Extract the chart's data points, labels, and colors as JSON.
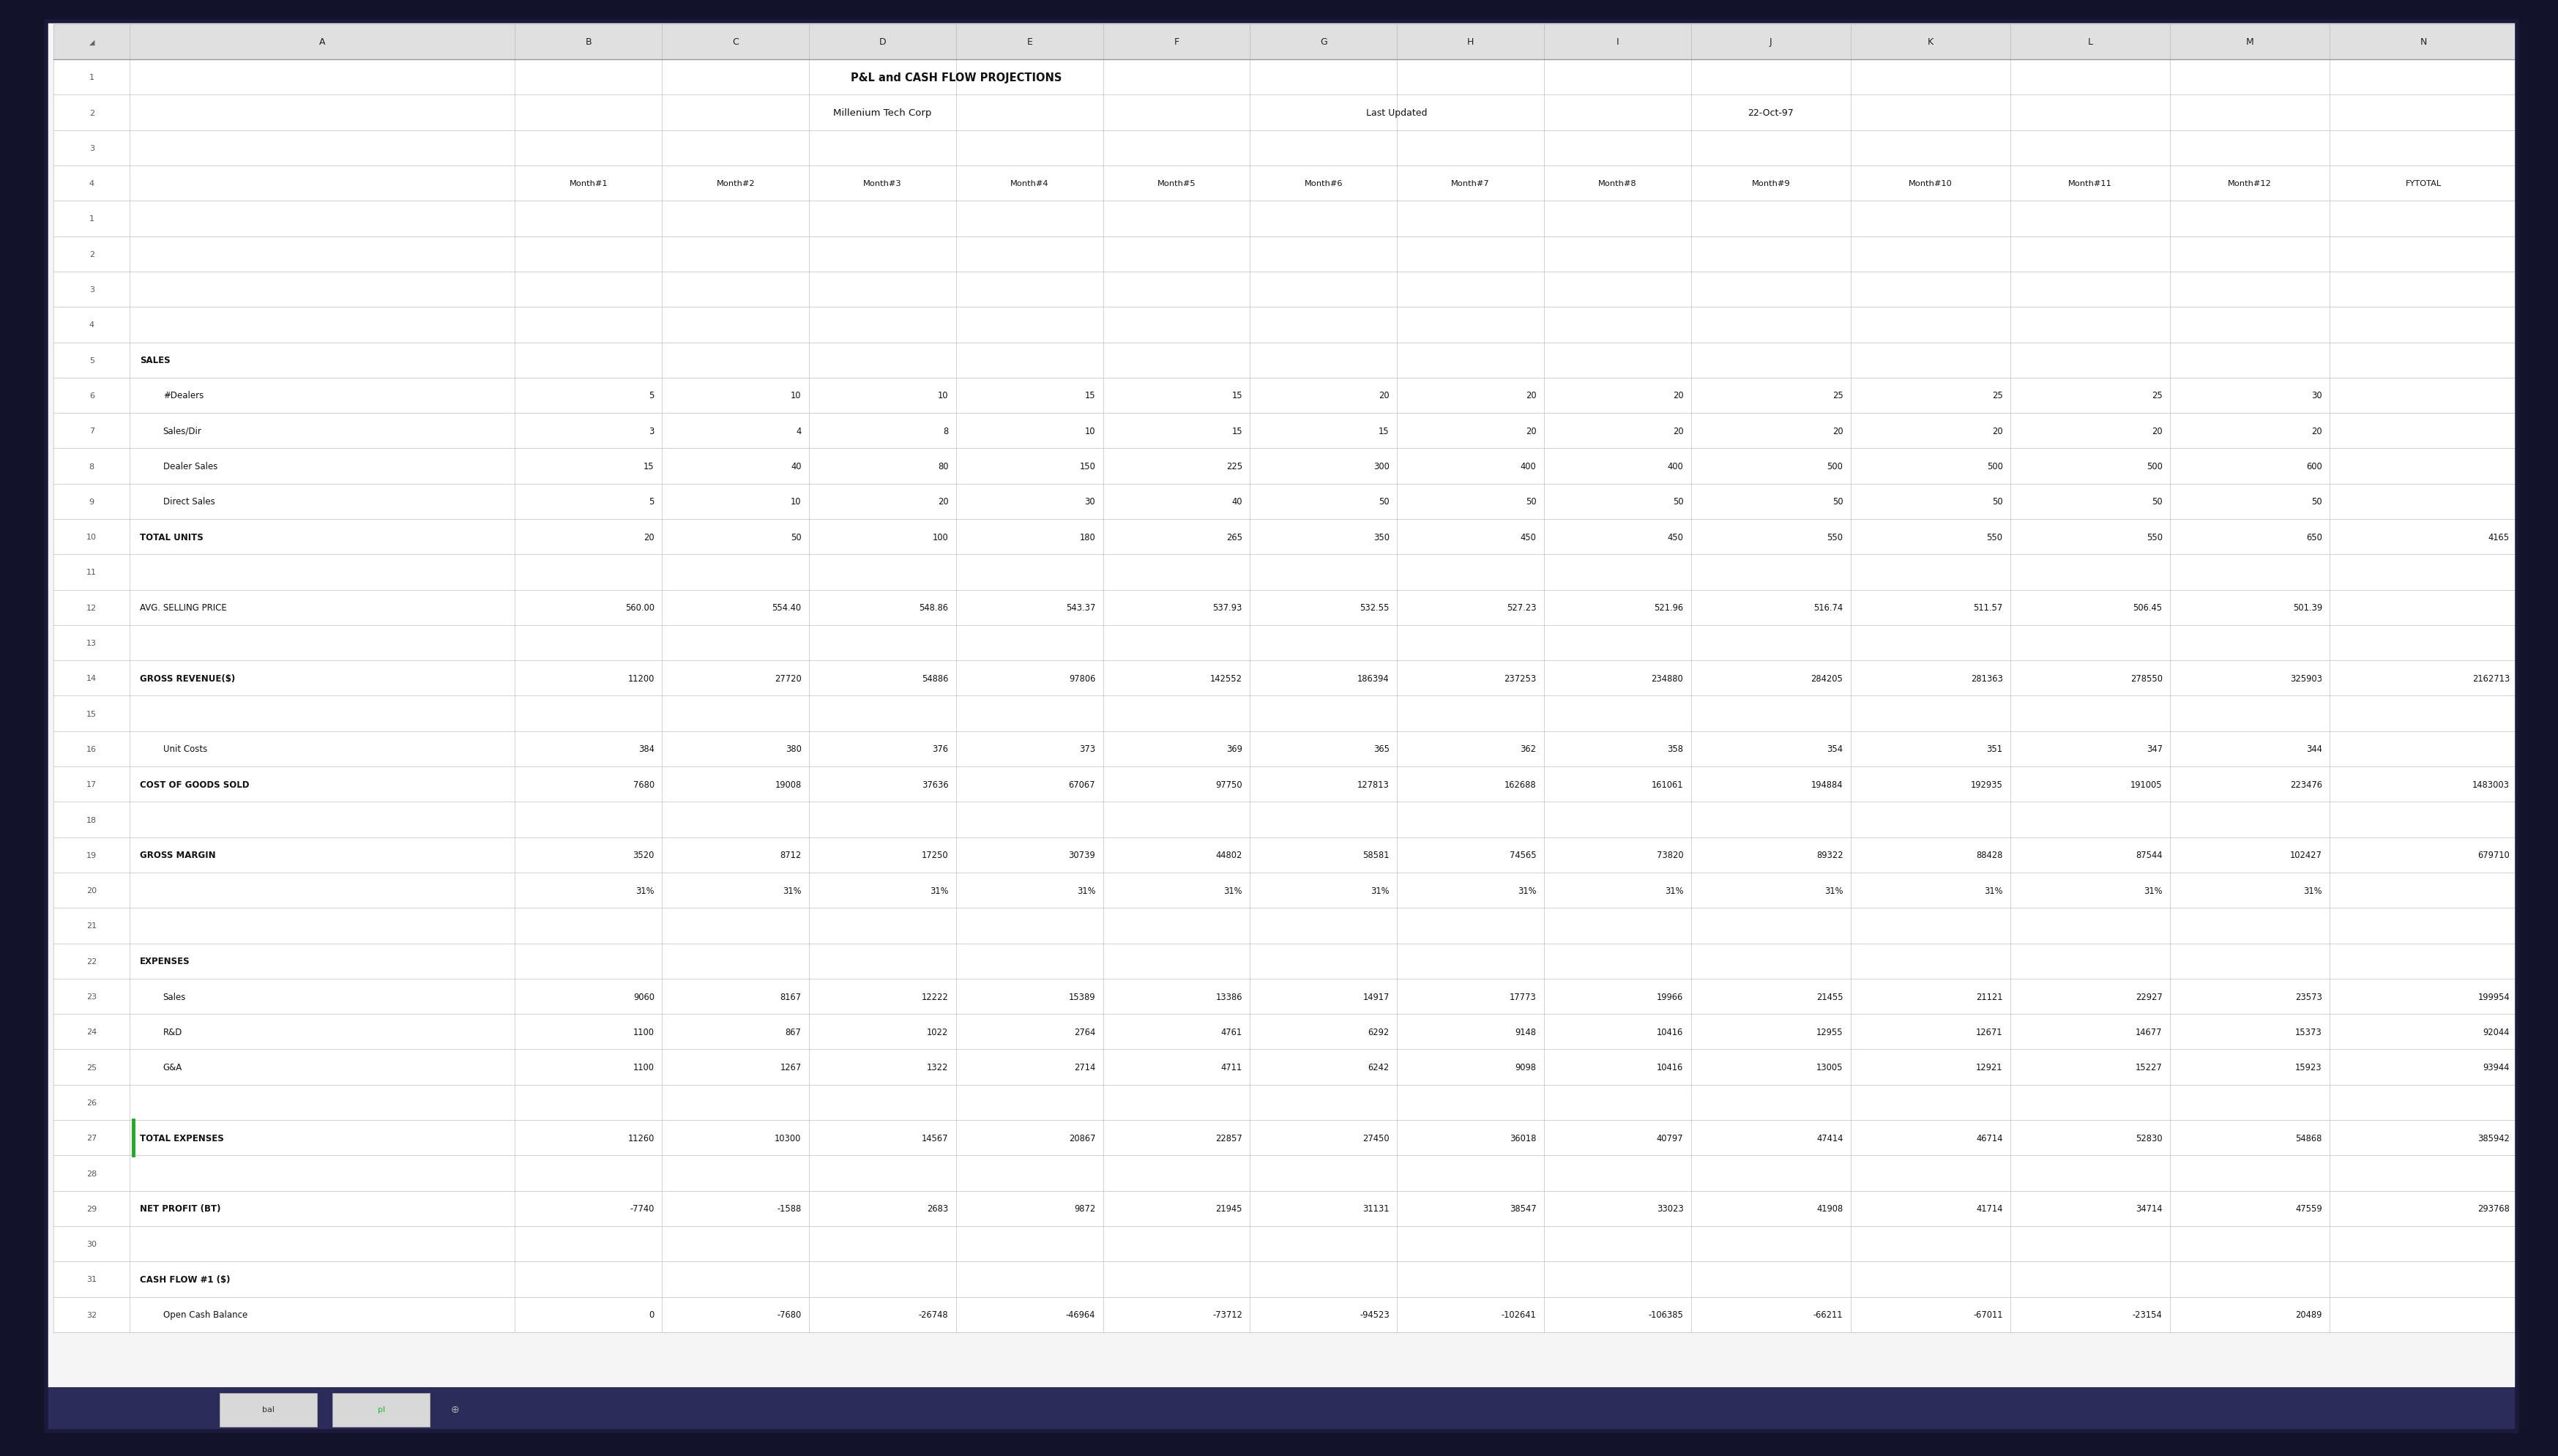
{
  "title1": "P&L and CASH FLOW PROJECTIONS",
  "title2": "Millenium Tech Corp",
  "last_updated_label": "Last Updated",
  "last_updated_value": "22-Oct-97",
  "col_headers": [
    "A",
    "B",
    "C",
    "D",
    "E",
    "F",
    "G",
    "H",
    "I",
    "J",
    "K",
    "L",
    "M",
    "N"
  ],
  "month_headers": [
    "Month#1",
    "Month#2",
    "Month#3",
    "Month#4",
    "Month#5",
    "Month#6",
    "Month#7",
    "Month#8",
    "Month#9",
    "Month#10",
    "Month#11",
    "Month#12",
    "FYTOTAL"
  ],
  "rows": [
    {
      "row": 1,
      "label": "",
      "indent": false,
      "bold": false,
      "values": [
        "",
        "",
        "",
        "",
        "",
        "",
        "",
        "",
        "",
        "",
        "",
        "",
        ""
      ]
    },
    {
      "row": 2,
      "label": "",
      "indent": false,
      "bold": false,
      "values": [
        "",
        "",
        "",
        "",
        "",
        "",
        "",
        "",
        "",
        "",
        "",
        "",
        ""
      ]
    },
    {
      "row": 3,
      "label": "",
      "indent": false,
      "bold": false,
      "values": [
        "",
        "",
        "",
        "",
        "",
        "",
        "",
        "",
        "",
        "",
        "",
        "",
        ""
      ]
    },
    {
      "row": 4,
      "label": "",
      "indent": false,
      "bold": false,
      "values": [
        "",
        "",
        "",
        "",
        "",
        "",
        "",
        "",
        "",
        "",
        "",
        "",
        ""
      ]
    },
    {
      "row": 5,
      "label": "SALES",
      "indent": false,
      "bold": true,
      "values": [
        "",
        "",
        "",
        "",
        "",
        "",
        "",
        "",
        "",
        "",
        "",
        "",
        ""
      ]
    },
    {
      "row": 6,
      "label": "#Dealers",
      "indent": true,
      "bold": false,
      "values": [
        "5",
        "10",
        "10",
        "15",
        "15",
        "20",
        "20",
        "20",
        "25",
        "25",
        "25",
        "30",
        ""
      ]
    },
    {
      "row": 7,
      "label": "Sales/Dir",
      "indent": true,
      "bold": false,
      "values": [
        "3",
        "4",
        "8",
        "10",
        "15",
        "15",
        "20",
        "20",
        "20",
        "20",
        "20",
        "20",
        ""
      ]
    },
    {
      "row": 8,
      "label": "Dealer Sales",
      "indent": true,
      "bold": false,
      "values": [
        "15",
        "40",
        "80",
        "150",
        "225",
        "300",
        "400",
        "400",
        "500",
        "500",
        "500",
        "600",
        ""
      ]
    },
    {
      "row": 9,
      "label": "Direct Sales",
      "indent": true,
      "bold": false,
      "values": [
        "5",
        "10",
        "20",
        "30",
        "40",
        "50",
        "50",
        "50",
        "50",
        "50",
        "50",
        "50",
        ""
      ]
    },
    {
      "row": 10,
      "label": "TOTAL UNITS",
      "indent": false,
      "bold": true,
      "values": [
        "20",
        "50",
        "100",
        "180",
        "265",
        "350",
        "450",
        "450",
        "550",
        "550",
        "550",
        "650",
        "4165"
      ]
    },
    {
      "row": 11,
      "label": "",
      "indent": false,
      "bold": false,
      "values": [
        "",
        "",
        "",
        "",
        "",
        "",
        "",
        "",
        "",
        "",
        "",
        "",
        ""
      ]
    },
    {
      "row": 12,
      "label": "AVG. SELLING PRICE",
      "indent": false,
      "bold": false,
      "values": [
        "560.00",
        "554.40",
        "548.86",
        "543.37",
        "537.93",
        "532.55",
        "527.23",
        "521.96",
        "516.74",
        "511.57",
        "506.45",
        "501.39",
        ""
      ]
    },
    {
      "row": 13,
      "label": "",
      "indent": false,
      "bold": false,
      "values": [
        "",
        "",
        "",
        "",
        "",
        "",
        "",
        "",
        "",
        "",
        "",
        "",
        ""
      ]
    },
    {
      "row": 14,
      "label": "GROSS REVENUE($)",
      "indent": false,
      "bold": true,
      "values": [
        "11200",
        "27720",
        "54886",
        "97806",
        "142552",
        "186394",
        "237253",
        "234880",
        "284205",
        "281363",
        "278550",
        "325903",
        "2162713"
      ]
    },
    {
      "row": 15,
      "label": "",
      "indent": false,
      "bold": false,
      "values": [
        "",
        "",
        "",
        "",
        "",
        "",
        "",
        "",
        "",
        "",
        "",
        "",
        ""
      ]
    },
    {
      "row": 16,
      "label": "Unit Costs",
      "indent": true,
      "bold": false,
      "values": [
        "384",
        "380",
        "376",
        "373",
        "369",
        "365",
        "362",
        "358",
        "354",
        "351",
        "347",
        "344",
        ""
      ]
    },
    {
      "row": 17,
      "label": "COST OF GOODS SOLD",
      "indent": false,
      "bold": true,
      "values": [
        "7680",
        "19008",
        "37636",
        "67067",
        "97750",
        "127813",
        "162688",
        "161061",
        "194884",
        "192935",
        "191005",
        "223476",
        "1483003"
      ]
    },
    {
      "row": 18,
      "label": "",
      "indent": false,
      "bold": false,
      "values": [
        "",
        "",
        "",
        "",
        "",
        "",
        "",
        "",
        "",
        "",
        "",
        "",
        ""
      ]
    },
    {
      "row": 19,
      "label": "GROSS MARGIN",
      "indent": false,
      "bold": true,
      "values": [
        "3520",
        "8712",
        "17250",
        "30739",
        "44802",
        "58581",
        "74565",
        "73820",
        "89322",
        "88428",
        "87544",
        "102427",
        "679710"
      ]
    },
    {
      "row": 20,
      "label": "",
      "indent": false,
      "bold": false,
      "values": [
        "31%",
        "31%",
        "31%",
        "31%",
        "31%",
        "31%",
        "31%",
        "31%",
        "31%",
        "31%",
        "31%",
        "31%",
        ""
      ]
    },
    {
      "row": 21,
      "label": "",
      "indent": false,
      "bold": false,
      "values": [
        "",
        "",
        "",
        "",
        "",
        "",
        "",
        "",
        "",
        "",
        "",
        "",
        ""
      ]
    },
    {
      "row": 22,
      "label": "EXPENSES",
      "indent": false,
      "bold": true,
      "values": [
        "",
        "",
        "",
        "",
        "",
        "",
        "",
        "",
        "",
        "",
        "",
        "",
        ""
      ]
    },
    {
      "row": 23,
      "label": "Sales",
      "indent": true,
      "bold": false,
      "values": [
        "9060",
        "8167",
        "12222",
        "15389",
        "13386",
        "14917",
        "17773",
        "19966",
        "21455",
        "21121",
        "22927",
        "23573",
        "199954"
      ]
    },
    {
      "row": 24,
      "label": "R&D",
      "indent": true,
      "bold": false,
      "values": [
        "1100",
        "867",
        "1022",
        "2764",
        "4761",
        "6292",
        "9148",
        "10416",
        "12955",
        "12671",
        "14677",
        "15373",
        "92044"
      ]
    },
    {
      "row": 25,
      "label": "G&A",
      "indent": true,
      "bold": false,
      "values": [
        "1100",
        "1267",
        "1322",
        "2714",
        "4711",
        "6242",
        "9098",
        "10416",
        "13005",
        "12921",
        "15227",
        "15923",
        "93944"
      ]
    },
    {
      "row": 26,
      "label": "",
      "indent": false,
      "bold": false,
      "values": [
        "",
        "",
        "",
        "",
        "",
        "",
        "",
        "",
        "",
        "",
        "",
        "",
        ""
      ]
    },
    {
      "row": 27,
      "label": "TOTAL EXPENSES",
      "indent": false,
      "bold": true,
      "values": [
        "11260",
        "10300",
        "14567",
        "20867",
        "22857",
        "27450",
        "36018",
        "40797",
        "47414",
        "46714",
        "52830",
        "54868",
        "385942"
      ],
      "has_left_bar": true
    },
    {
      "row": 28,
      "label": "",
      "indent": false,
      "bold": false,
      "values": [
        "",
        "",
        "",
        "",
        "",
        "",
        "",
        "",
        "",
        "",
        "",
        "",
        ""
      ]
    },
    {
      "row": 29,
      "label": "NET PROFIT (BT)",
      "indent": false,
      "bold": true,
      "values": [
        "-7740",
        "-1588",
        "2683",
        "9872",
        "21945",
        "31131",
        "38547",
        "33023",
        "41908",
        "41714",
        "34714",
        "47559",
        "293768"
      ]
    },
    {
      "row": 30,
      "label": "",
      "indent": false,
      "bold": false,
      "values": [
        "",
        "",
        "",
        "",
        "",
        "",
        "",
        "",
        "",
        "",
        "",
        "",
        ""
      ]
    },
    {
      "row": 31,
      "label": "CASH FLOW #1 ($)",
      "indent": false,
      "bold": true,
      "values": [
        "",
        "",
        "",
        "",
        "",
        "",
        "",
        "",
        "",
        "",
        "",
        "",
        ""
      ]
    },
    {
      "row": 32,
      "label": "Open Cash Balance",
      "indent": true,
      "bold": false,
      "values": [
        "0",
        "-7680",
        "-26748",
        "-46964",
        "-73712",
        "-94523",
        "-102641",
        "-106385",
        "-66211",
        "-67011",
        "-23154",
        "20489",
        ""
      ]
    }
  ],
  "outer_bg": "#12122a",
  "sheet_bg": "#f5f5f5",
  "header_row_bg": "#e0e0e0",
  "border_color": "#b0b0b0",
  "header_border_color": "#999999",
  "text_color": "#111111",
  "row_num_color": "#555555",
  "col_letter_color": "#222222",
  "tab_bar_bg": "#2c2c5a",
  "tab1_text": "bal",
  "tab2_text": "pl",
  "tab2_color": "#22bb22",
  "green_bar_color": "#22aa22"
}
